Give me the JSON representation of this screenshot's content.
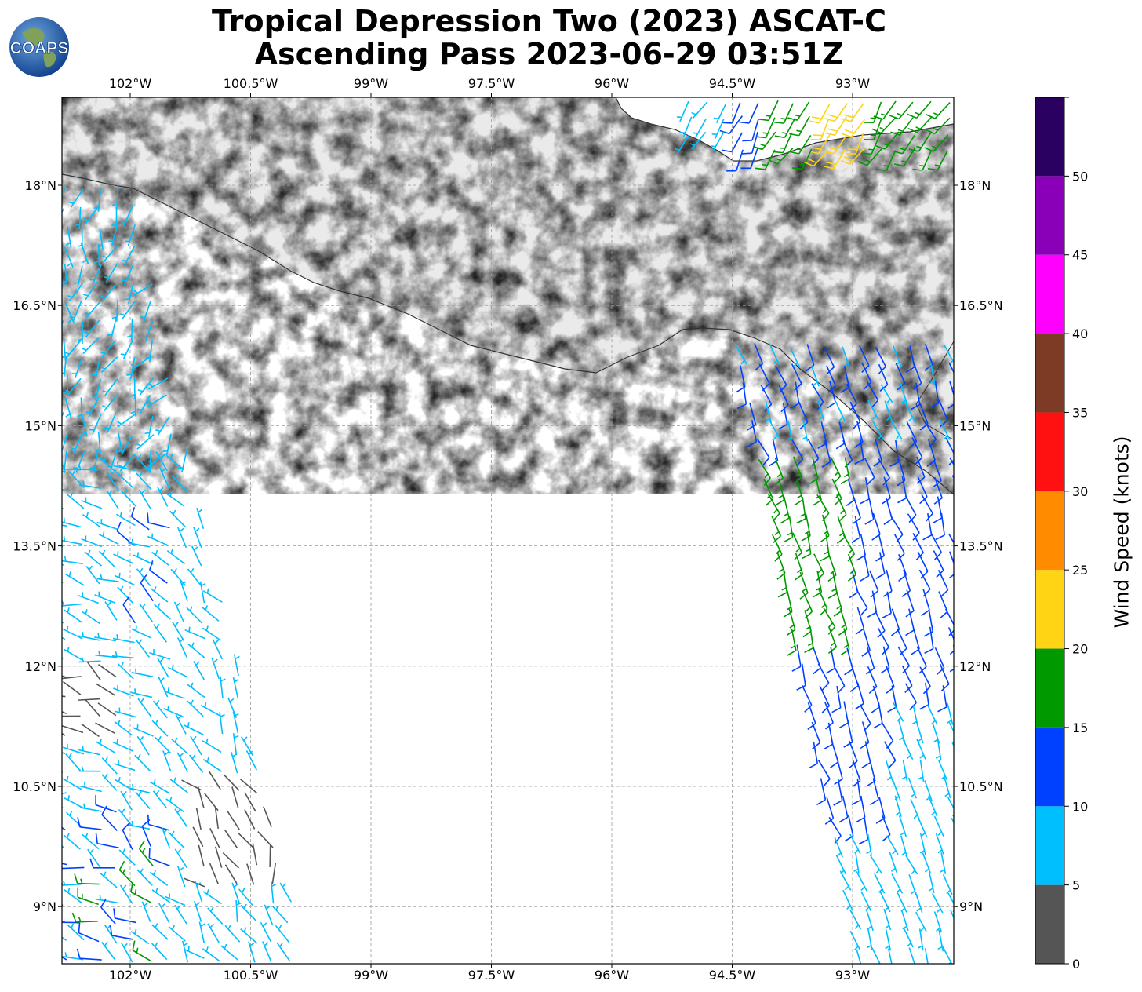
{
  "title": {
    "line1": "Tropical Depression Two (2023) ASCAT-C",
    "line2": "Ascending Pass 2023-06-29 03:51Z"
  },
  "logo": {
    "text": "COAPS",
    "icon": "globe-logo-icon"
  },
  "map": {
    "lon_labels": [
      "102°W",
      "100.5°W",
      "99°W",
      "97.5°W",
      "96°W",
      "94.5°W",
      "93°W"
    ],
    "lat_labels": [
      "18°N",
      "16.5°N",
      "15°N",
      "13.5°N",
      "12°N",
      "10.5°N",
      "9°N"
    ],
    "lon_range": [
      -102.86,
      -91.7
    ],
    "lat_range": [
      8.3,
      19.1
    ],
    "gridlines": true,
    "basemap": "grayscale terrain relief over land, white ocean, dark coastlines"
  },
  "colorbar": {
    "label": "Wind Speed (knots)",
    "ticks": [
      "0",
      "5",
      "10",
      "15",
      "20",
      "25",
      "30",
      "35",
      "40",
      "45",
      "50"
    ],
    "colors": [
      "#555555",
      "#00bfff",
      "#0040ff",
      "#009900",
      "#ffd414",
      "#ff8c00",
      "#ff1111",
      "#7d3b25",
      "#ff00ff",
      "#8a00b8",
      "#2a0060"
    ]
  }
}
